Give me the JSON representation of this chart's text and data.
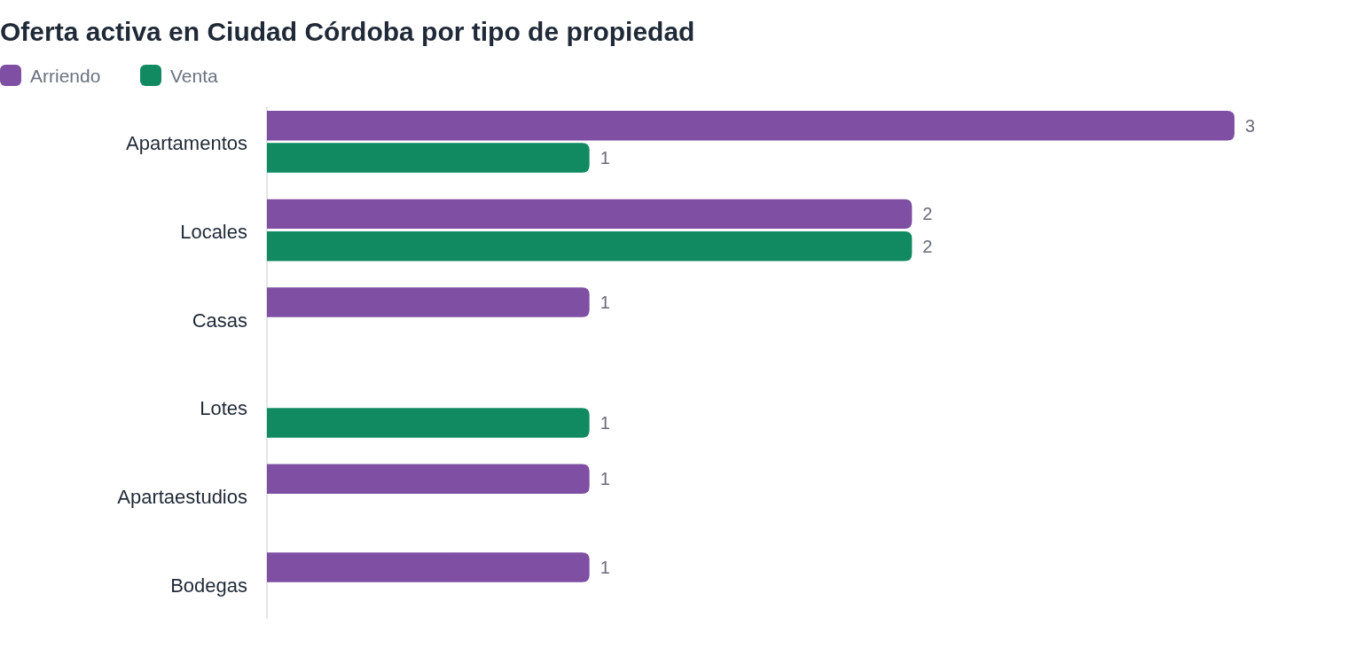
{
  "chart_data": {
    "type": "bar",
    "orientation": "horizontal",
    "title": "Oferta activa en Ciudad Córdoba por tipo de propiedad",
    "categories": [
      "Apartamentos",
      "Locales",
      "Casas",
      "Lotes",
      "Apartaestudios",
      "Bodegas"
    ],
    "series": [
      {
        "name": "Arriendo",
        "color": "#7f4fa3",
        "values": [
          3,
          2,
          1,
          null,
          1,
          1
        ]
      },
      {
        "name": "Venta",
        "color": "#118a62",
        "values": [
          1,
          2,
          null,
          1,
          null,
          null
        ]
      }
    ],
    "data_labels": true,
    "legend": "top left",
    "grid": false
  }
}
